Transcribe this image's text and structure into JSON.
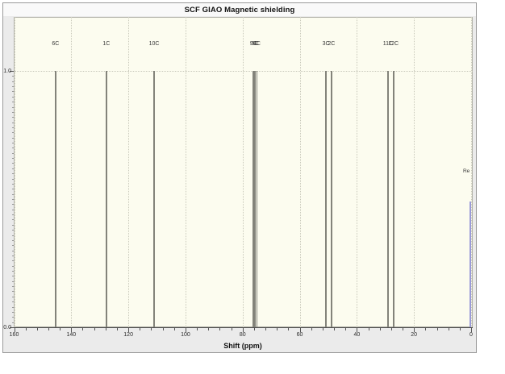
{
  "window": {
    "title": "SCF GIAO Magnetic shielding"
  },
  "chart_data": {
    "type": "bar",
    "subtype": "stick-spectrum",
    "title": "SCF GIAO Magnetic shielding",
    "xlabel": "Shift (ppm)",
    "ylabel": "",
    "x_axis": {
      "min": 0,
      "max": 160,
      "reversed": true,
      "major_step": 20,
      "minor_step": 4,
      "tick_labels": [
        "160",
        "140",
        "120",
        "100",
        "80",
        "60",
        "40",
        "20",
        "0"
      ]
    },
    "y_axis": {
      "min": 0.0,
      "max": 1.0,
      "tick_labels": [
        "1.0",
        "0.0"
      ],
      "labeled_values": [
        1.0,
        0.0
      ]
    },
    "grid": {
      "style": "dotted",
      "x_majors": true,
      "y_values": [
        1.0
      ]
    },
    "legend": {
      "visible": false
    },
    "peaks": [
      {
        "label": "6C",
        "shift_ppm": 145.5,
        "height": 1.0
      },
      {
        "label": "1C",
        "shift_ppm": 127.7,
        "height": 1.0
      },
      {
        "label": "10C",
        "shift_ppm": 111.0,
        "height": 1.0
      },
      {
        "label": "9C",
        "shift_ppm": 76.2,
        "height": 1.0
      },
      {
        "label": "5C",
        "shift_ppm": 75.6,
        "height": 1.0
      },
      {
        "label": "4C",
        "shift_ppm": 75.0,
        "height": 1.0
      },
      {
        "label": "3C",
        "shift_ppm": 50.8,
        "height": 1.0
      },
      {
        "label": "2C",
        "shift_ppm": 48.9,
        "height": 1.0
      },
      {
        "label": "11C",
        "shift_ppm": 29.1,
        "height": 1.0
      },
      {
        "label": "12C",
        "shift_ppm": 27.2,
        "height": 1.0
      },
      {
        "label": "Re",
        "shift_ppm": 0.2,
        "height": 0.49,
        "role": "reference"
      }
    ]
  },
  "colors": {
    "plot_bg": "#fcfcef",
    "window_bg": "#ebebeb",
    "peak": "#83837a",
    "reference": "#9a9ad8",
    "grid": "#c9c9bb",
    "axis": "#4e4e4e",
    "border": "#9a9a9a"
  }
}
